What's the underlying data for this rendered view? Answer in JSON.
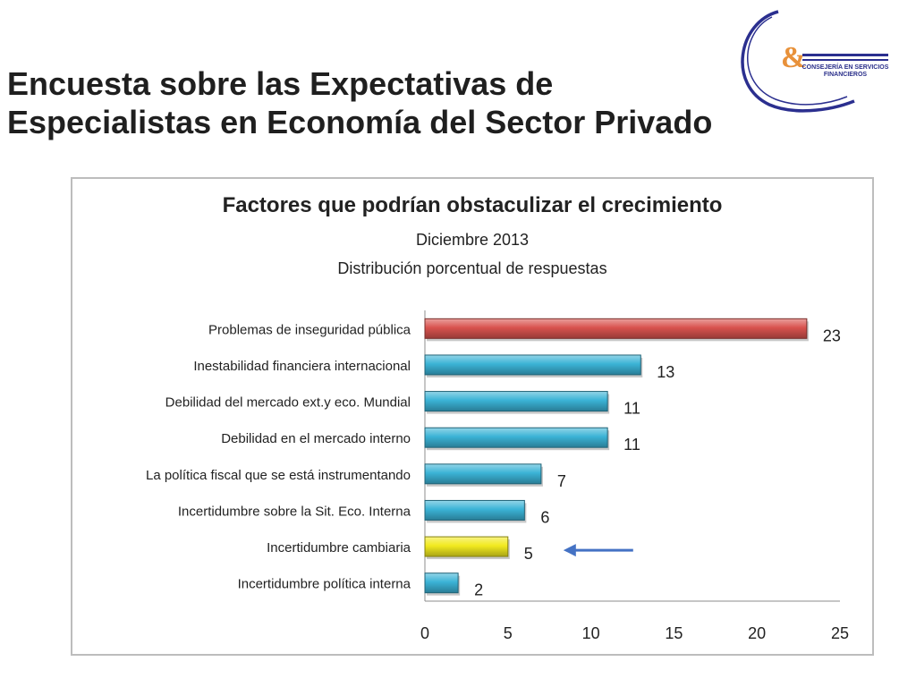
{
  "slide": {
    "title_line1": "Encuesta  sobre las Expectativas de",
    "title_line2": "Especialistas en Economía del Sector Privado"
  },
  "logo": {
    "mark": "&",
    "text_line1": "Consejería en servicios",
    "text_line2": "financieros",
    "colors": {
      "arc": "#2b2f8f",
      "mark": "#e8913a"
    }
  },
  "chart_data": {
    "type": "bar",
    "orientation": "horizontal",
    "title": "Factores que podrían obstaculizar el crecimiento",
    "subtitle": "Diciembre 2013",
    "subtitle2": "Distribución porcentual de respuestas",
    "categories": [
      "Problemas de inseguridad pública",
      "Inestabilidad financiera internacional",
      "Debilidad del mercado ext.y eco. Mundial",
      "Debilidad en el mercado interno",
      "La política fiscal que se está instrumentando",
      "Incertidumbre sobre la Sit. Eco. Interna",
      "Incertidumbre cambiaria",
      "Incertidumbre política interna"
    ],
    "values": [
      23,
      13,
      11,
      11,
      7,
      6,
      5,
      2
    ],
    "bar_colors": [
      "#d9534f",
      "#3bb3d6",
      "#3bb3d6",
      "#3bb3d6",
      "#3bb3d6",
      "#3bb3d6",
      "#f2ea1f",
      "#3bb3d6"
    ],
    "xlim": [
      0,
      25
    ],
    "xticks": [
      0,
      5,
      10,
      15,
      20,
      25
    ],
    "grid": false,
    "legend": "none",
    "annotations": [
      {
        "type": "arrow",
        "points_to": "Incertidumbre cambiaria",
        "color": "#4472c4"
      }
    ]
  }
}
